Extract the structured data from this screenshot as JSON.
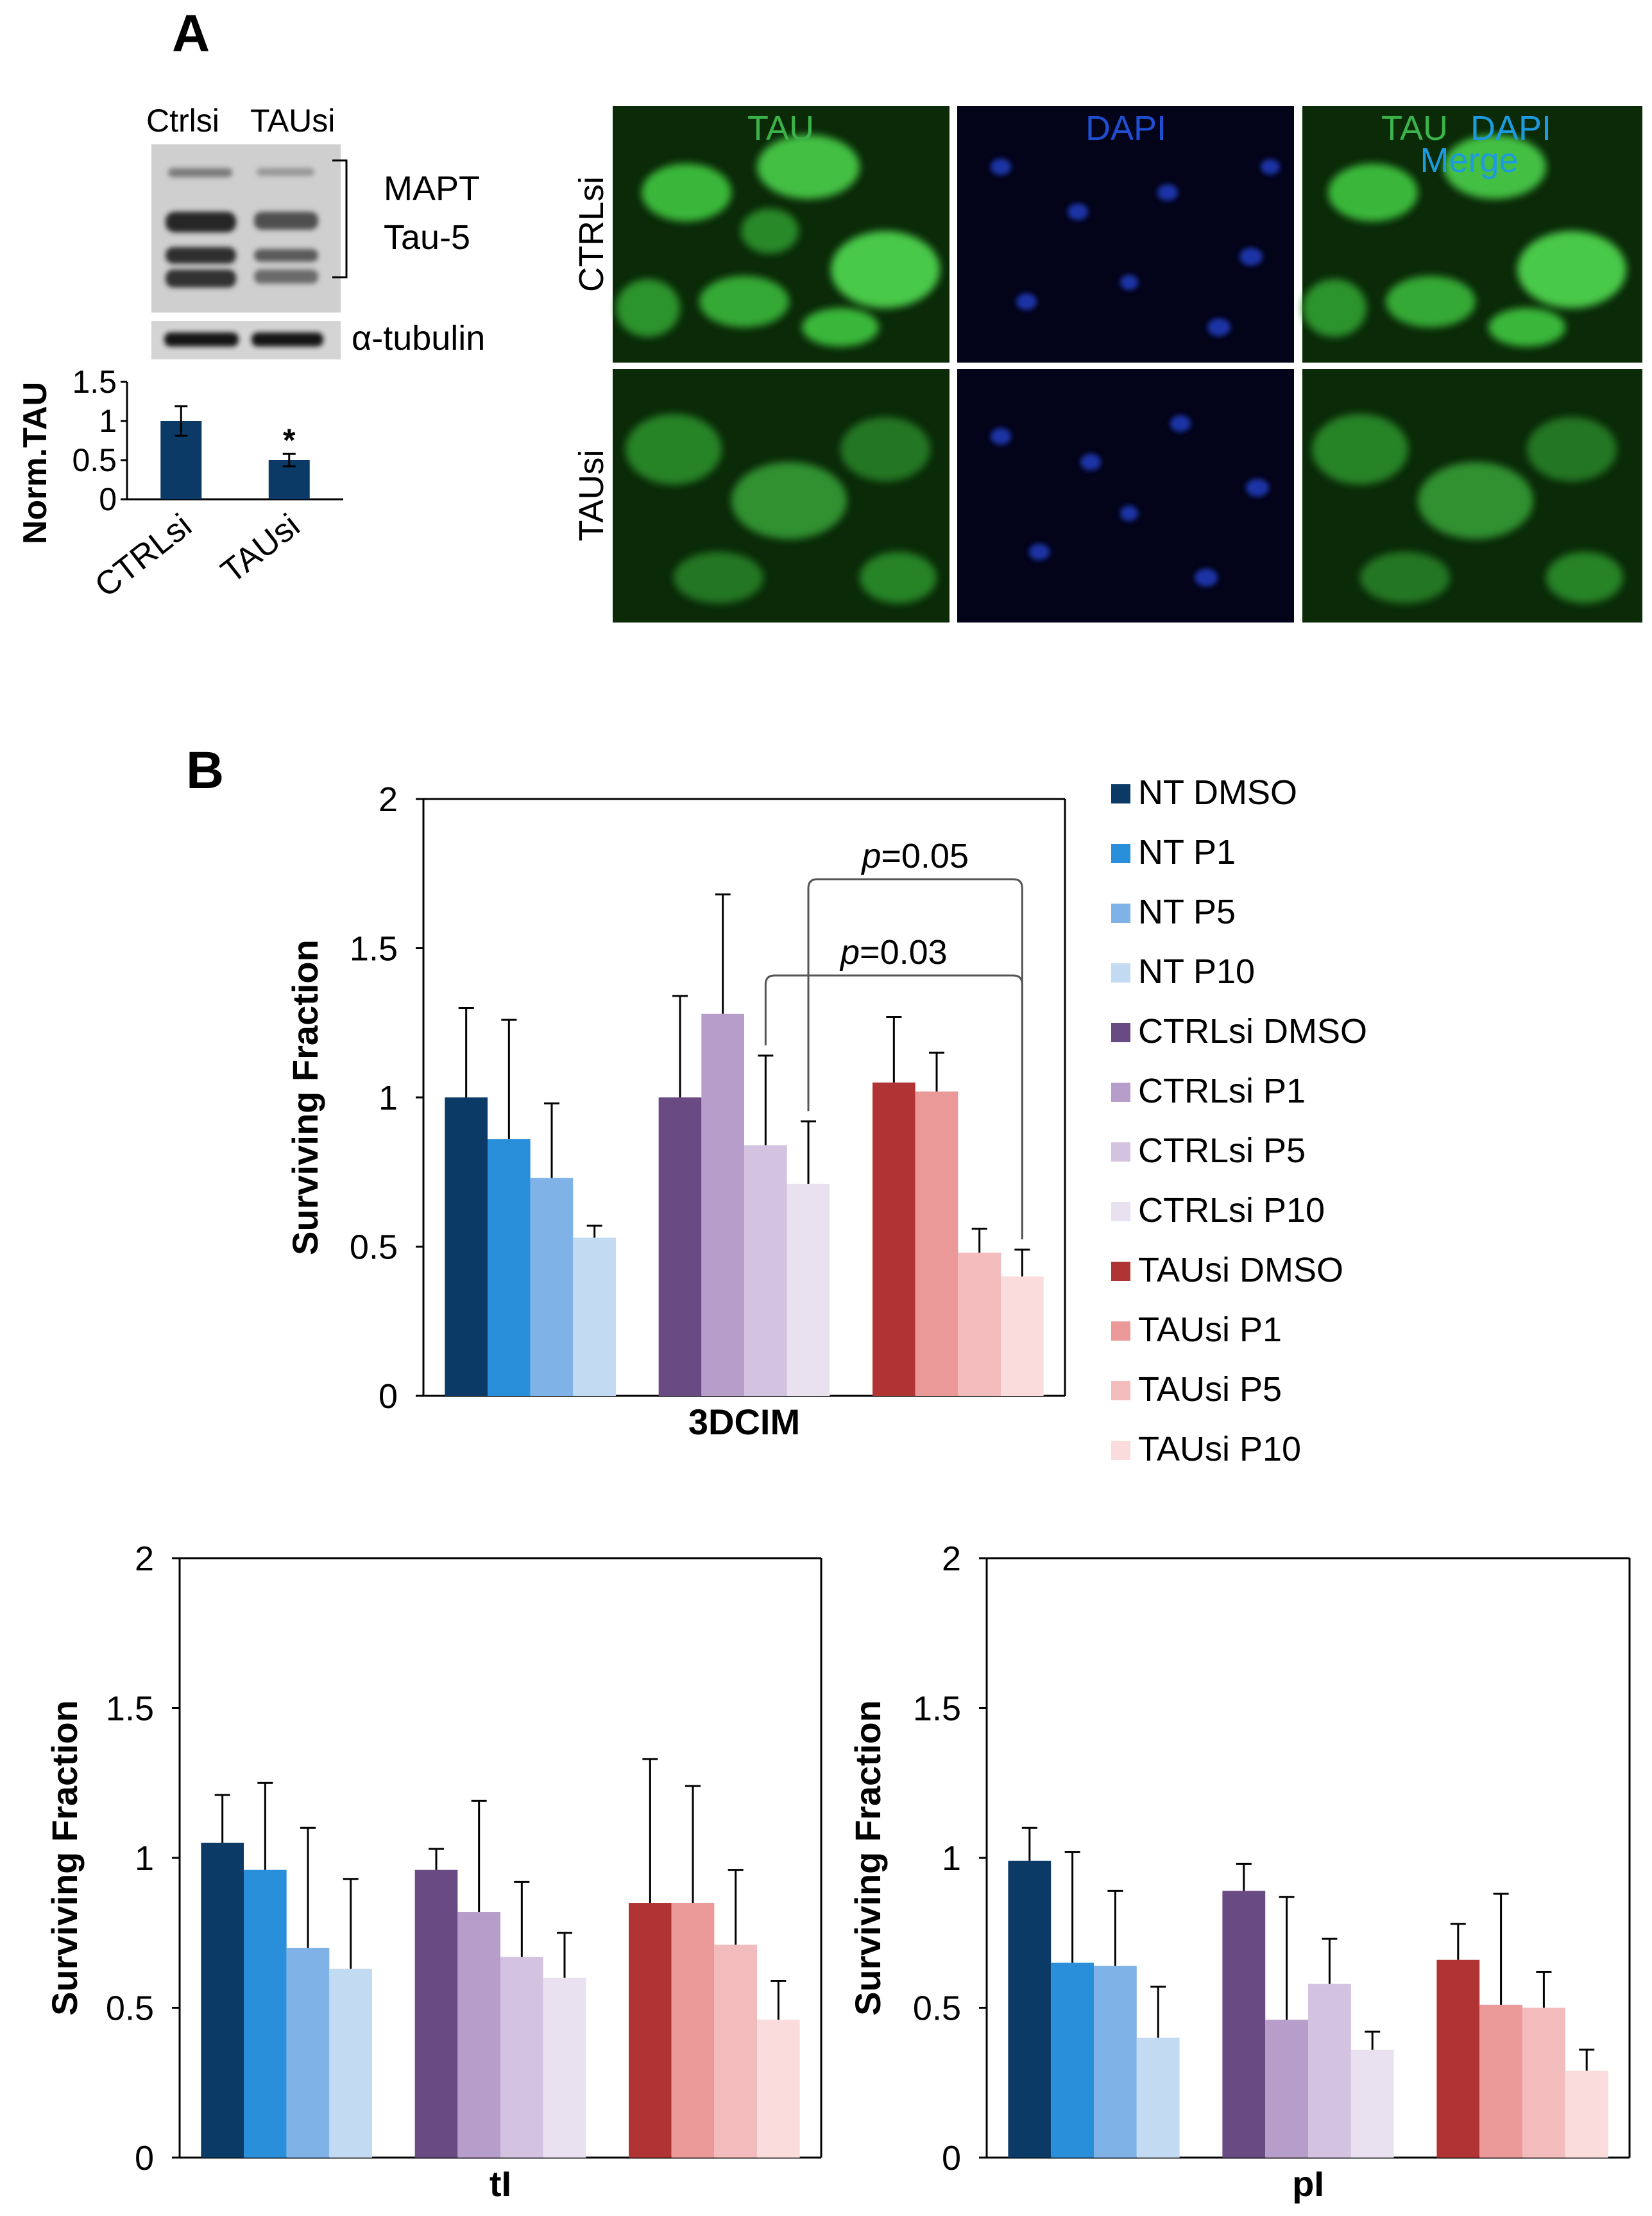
{
  "panel_a": {
    "label": "A",
    "western_blot": {
      "lane_labels": [
        "Ctrlsi",
        "TAUsi"
      ],
      "band_label_line1": "MAPT",
      "band_label_line2": "Tau-5",
      "loading_control": "α-tubulin"
    },
    "micrographs": {
      "column_labels": {
        "tau": "TAU",
        "dapi": "DAPI",
        "merge_tau": "TAU",
        "merge_dapi": "DAPI",
        "merge": "Merge"
      },
      "row_labels": [
        "CTRLsi",
        "TAUsi"
      ],
      "colors": {
        "tau": "#3cb34a",
        "dapi": "#1f4fd0",
        "merge": "#1e9ae0"
      }
    }
  },
  "panel_b": {
    "label": "B"
  },
  "legend": [
    {
      "name": "NT DMSO",
      "color": "#0b3a66"
    },
    {
      "name": "NT P1",
      "color": "#2a8fdb"
    },
    {
      "name": "NT P5",
      "color": "#7fb3e8"
    },
    {
      "name": "NT P10",
      "color": "#c3daf3"
    },
    {
      "name": "CTRLsi DMSO",
      "color": "#6a4a82"
    },
    {
      "name": "CTRLsi P1",
      "color": "#b79dc9"
    },
    {
      "name": "CTRLsi P5",
      "color": "#d3c3e0"
    },
    {
      "name": "CTRLsi P10",
      "color": "#e9e1ef"
    },
    {
      "name": "TAUsi DMSO",
      "color": "#b03434"
    },
    {
      "name": "TAUsi P1",
      "color": "#ea9898"
    },
    {
      "name": "TAUsi P5",
      "color": "#f3bcbc"
    },
    {
      "name": "TAUsi P10",
      "color": "#fadcdc"
    }
  ],
  "chart_data": [
    {
      "id": "norm-tau",
      "type": "bar",
      "ylabel": "Norm.TAU",
      "ylim": [
        0,
        1.5
      ],
      "yticks": [
        0,
        0.5,
        1,
        1.5
      ],
      "ytick_labels": [
        "0",
        "0.5",
        "1",
        "1.5"
      ],
      "categories": [
        "CTRLsi",
        "TAUsi"
      ],
      "values": [
        1.0,
        0.5
      ],
      "errors": [
        0.19,
        0.08
      ],
      "annotations": [
        "",
        "*"
      ],
      "color": "#0b3a66"
    },
    {
      "id": "3dcim",
      "type": "bar",
      "xlabel": "3DCIM",
      "ylabel": "Surviving Fraction",
      "ylim": [
        0,
        2
      ],
      "yticks": [
        0,
        0.5,
        1,
        1.5,
        2
      ],
      "ytick_labels": [
        "0",
        "0.5",
        "1",
        "1.5",
        "2"
      ],
      "groups": [
        "NT",
        "CTRLsi",
        "TAUsi"
      ],
      "values": [
        [
          1.0,
          0.86,
          0.73,
          0.53
        ],
        [
          1.0,
          1.28,
          0.84,
          0.71
        ],
        [
          1.05,
          1.02,
          0.48,
          0.4
        ]
      ],
      "errors": [
        [
          0.3,
          0.4,
          0.25,
          0.04
        ],
        [
          0.34,
          0.4,
          0.3,
          0.21
        ],
        [
          0.22,
          0.13,
          0.08,
          0.09
        ]
      ],
      "brackets": [
        {
          "text_p": "p",
          "text_rest": "=0.03",
          "from": [
            1,
            2
          ],
          "to": [
            2,
            3
          ]
        },
        {
          "text_p": "p",
          "text_rest": "=0.05",
          "from": [
            1,
            3
          ],
          "to": [
            2,
            3
          ]
        }
      ]
    },
    {
      "id": "tl",
      "type": "bar",
      "xlabel": "tI",
      "ylabel": "Surviving Fraction",
      "ylim": [
        0,
        2
      ],
      "yticks": [
        0,
        0.5,
        1,
        1.5,
        2
      ],
      "ytick_labels": [
        "0",
        "0.5",
        "1",
        "1.5",
        "2"
      ],
      "groups": [
        "NT",
        "CTRLsi",
        "TAUsi"
      ],
      "values": [
        [
          1.05,
          0.96,
          0.7,
          0.63
        ],
        [
          0.96,
          0.82,
          0.67,
          0.6
        ],
        [
          0.85,
          0.85,
          0.71,
          0.46
        ]
      ],
      "errors": [
        [
          0.16,
          0.29,
          0.4,
          0.3
        ],
        [
          0.07,
          0.37,
          0.25,
          0.15
        ],
        [
          0.48,
          0.39,
          0.25,
          0.13
        ]
      ]
    },
    {
      "id": "pl",
      "type": "bar",
      "xlabel": "pI",
      "ylabel": "Surviving Fraction",
      "ylim": [
        0,
        2
      ],
      "yticks": [
        0,
        0.5,
        1,
        1.5,
        2
      ],
      "ytick_labels": [
        "0",
        "0.5",
        "1",
        "1.5",
        "2"
      ],
      "groups": [
        "NT",
        "CTRLsi",
        "TAUsi"
      ],
      "values": [
        [
          0.99,
          0.65,
          0.64,
          0.4
        ],
        [
          0.89,
          0.46,
          0.58,
          0.36
        ],
        [
          0.66,
          0.51,
          0.5,
          0.29
        ]
      ],
      "errors": [
        [
          0.11,
          0.37,
          0.25,
          0.17
        ],
        [
          0.09,
          0.41,
          0.15,
          0.06
        ],
        [
          0.12,
          0.37,
          0.12,
          0.07
        ]
      ]
    }
  ]
}
